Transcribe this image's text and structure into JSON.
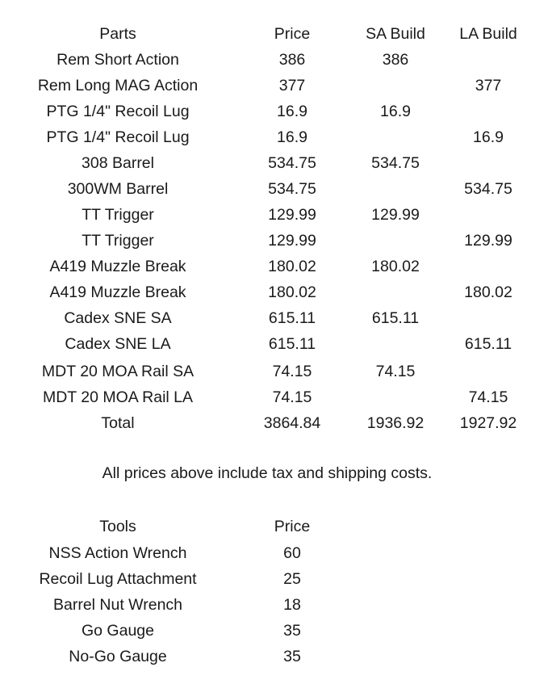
{
  "parts_table": {
    "headers": [
      "Parts",
      "Price",
      "SA Build",
      "LA Build"
    ],
    "rows": [
      [
        "Rem Short Action",
        "386",
        "386",
        ""
      ],
      [
        "Rem Long MAG Action",
        "377",
        "",
        "377"
      ],
      [
        "PTG 1/4\" Recoil Lug",
        "16.9",
        "16.9",
        ""
      ],
      [
        "PTG 1/4\" Recoil Lug",
        "16.9",
        "",
        "16.9"
      ],
      [
        "308 Barrel",
        "534.75",
        "534.75",
        ""
      ],
      [
        "300WM Barrel",
        "534.75",
        "",
        "534.75"
      ],
      [
        "TT Trigger",
        "129.99",
        "129.99",
        ""
      ],
      [
        "TT Trigger",
        "129.99",
        "",
        "129.99"
      ],
      [
        "A419 Muzzle Break",
        "180.02",
        "180.02",
        ""
      ],
      [
        "A419 Muzzle Break",
        "180.02",
        "",
        "180.02"
      ],
      [
        "Cadex SNE SA",
        "615.11",
        "615.11",
        ""
      ],
      [
        "Cadex SNE LA",
        "615.11",
        "",
        "615.11"
      ],
      [
        "MDT 20 MOA Rail SA",
        "74.15",
        "74.15",
        ""
      ],
      [
        "MDT 20 MOA Rail LA",
        "74.15",
        "",
        "74.15"
      ]
    ],
    "total": [
      "Total",
      "3864.84",
      "1936.92",
      "1927.92"
    ]
  },
  "note": "All prices above include tax and shipping costs.",
  "tools_table": {
    "headers": [
      "Tools",
      "Price"
    ],
    "rows": [
      [
        "NSS Action Wrench",
        "60"
      ],
      [
        "Recoil Lug Attachment",
        "25"
      ],
      [
        "Barrel Nut Wrench",
        "18"
      ],
      [
        "Go Gauge",
        "35"
      ],
      [
        "No-Go Gauge",
        "35"
      ]
    ]
  }
}
